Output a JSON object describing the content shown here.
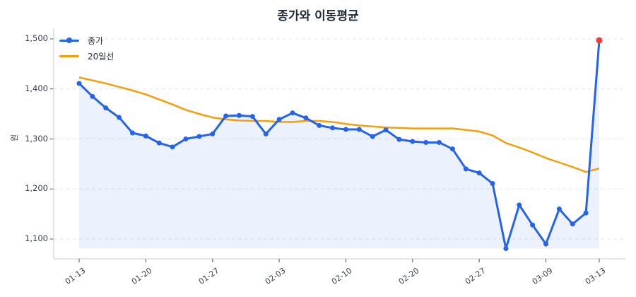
{
  "chart_data": {
    "type": "line",
    "title": "종가와 이동평균",
    "xlabel": "",
    "ylabel": "원",
    "ylim": [
      1065,
      1520
    ],
    "yticks": [
      1100,
      1200,
      1300,
      1400,
      1500
    ],
    "ytick_labels": [
      "1,100",
      "1,200",
      "1,300",
      "1,400",
      "1,500"
    ],
    "xtick_indices": [
      0,
      5,
      10,
      15,
      20,
      25,
      30,
      35,
      39
    ],
    "xtick_labels": [
      "01-13",
      "01-20",
      "01-27",
      "02-03",
      "02-10",
      "02-20",
      "02-27",
      "03-09",
      "03-13"
    ],
    "grid": true,
    "legend_position": "upper left",
    "series": [
      {
        "name": "종가",
        "color": "#2563eb",
        "marker": "circle",
        "fill": true,
        "values": [
          1411,
          1385,
          1362,
          1343,
          1312,
          1306,
          1292,
          1284,
          1300,
          1305,
          1310,
          1346,
          1347,
          1345,
          1310,
          1339,
          1352,
          1342,
          1327,
          1322,
          1319,
          1319,
          1305,
          1318,
          1299,
          1295,
          1293,
          1293,
          1280,
          1240,
          1232,
          1211,
          1081,
          1168,
          1128,
          1090,
          1160,
          1130,
          1152,
          1497
        ],
        "highlight_last": {
          "color": "#e53e3e",
          "value": 1497
        }
      },
      {
        "name": "20일선",
        "color": "#f59e0b",
        "marker": "none",
        "fill": false,
        "values": [
          1423,
          1417,
          1411,
          1404,
          1397,
          1389,
          1379,
          1369,
          1358,
          1350,
          1343,
          1339,
          1337,
          1336,
          1336,
          1334,
          1334,
          1336,
          1336,
          1334,
          1330,
          1327,
          1325,
          1323,
          1322,
          1321,
          1321,
          1321,
          1321,
          1318,
          1315,
          1307,
          1292,
          1283,
          1273,
          1262,
          1253,
          1244,
          1234,
          1241
        ]
      }
    ]
  },
  "legend": {
    "items": [
      {
        "label": "종가",
        "color": "#2563eb"
      },
      {
        "label": "20일선",
        "color": "#f59e0b"
      }
    ]
  }
}
